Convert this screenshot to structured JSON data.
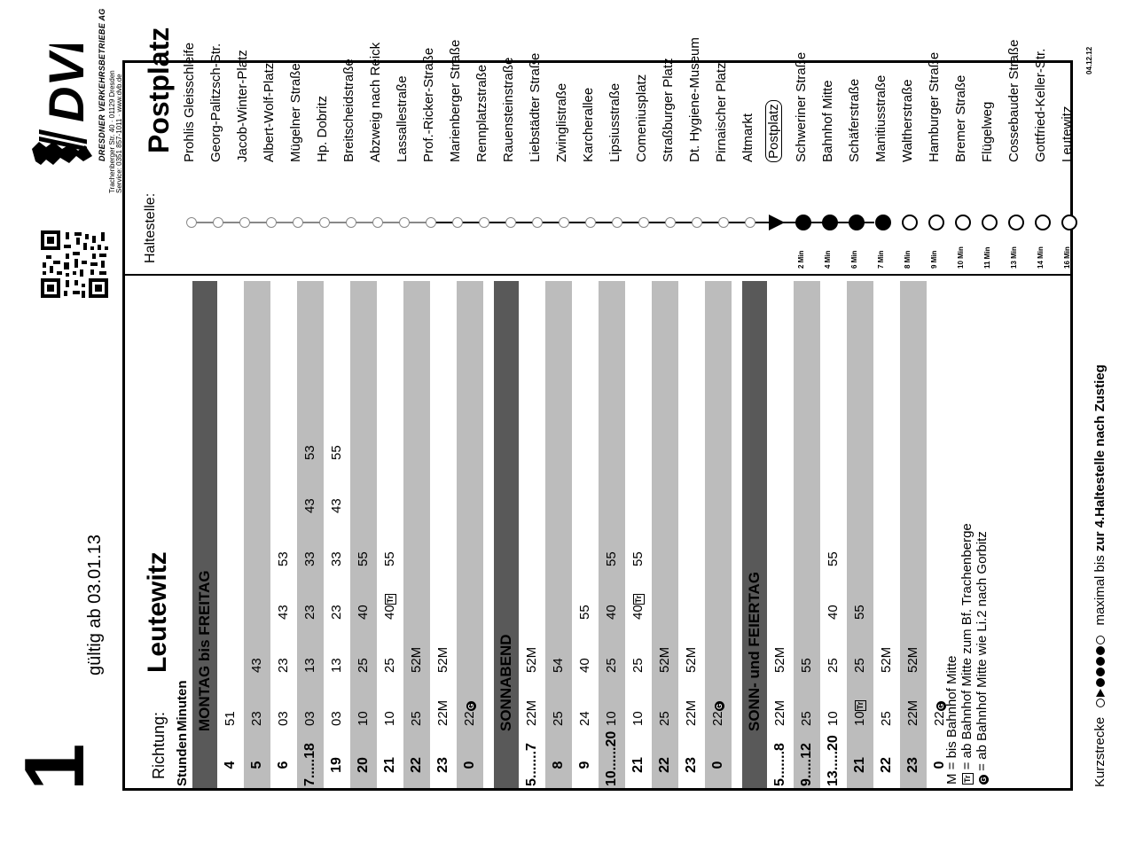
{
  "header": {
    "line_number": "1",
    "valid_from": "gültig ab 03.01.13",
    "logo_text": "DVB",
    "company": "DRESDNER VERKEHRSBETRIEBE AG",
    "address_line1": "Trachenberger Str. 40 · 01129 Dresden",
    "address_line2": "Service: 0351 857-1011 · www.dvb.de",
    "date_code": "04.12.12"
  },
  "direction": {
    "label": "Richtung:",
    "value": "Leutewitz"
  },
  "stop": {
    "label": "Haltestelle:",
    "value": "Postplatz"
  },
  "table_header": {
    "hours": "Stunden",
    "minutes": "Minuten"
  },
  "sections": [
    {
      "title": "MONTAG bis FREITAG",
      "rows": [
        {
          "hour": "4",
          "minutes": [
            "51"
          ],
          "shade": 1
        },
        {
          "hour": "5",
          "minutes": [
            "23",
            "43"
          ],
          "shade": 2
        },
        {
          "hour": "6",
          "minutes": [
            "03",
            "23",
            "43",
            "53"
          ],
          "shade": 1
        },
        {
          "hour": "7.....18",
          "minutes": [
            "03",
            "13",
            "23",
            "33",
            "43",
            "53"
          ],
          "shade": 2
        },
        {
          "hour": "19",
          "minutes": [
            "03",
            "13",
            "23",
            "33",
            "43",
            "55"
          ],
          "shade": 1
        },
        {
          "hour": "20",
          "minutes": [
            "10",
            "25",
            "40",
            "55"
          ],
          "shade": 2
        },
        {
          "hour": "21",
          "minutes": [
            "10",
            "25",
            "40Tr",
            "55"
          ],
          "shade": 1
        },
        {
          "hour": "22",
          "minutes": [
            "25",
            "52M"
          ],
          "shade": 2
        },
        {
          "hour": "23",
          "minutes": [
            "22M",
            "52M"
          ],
          "shade": 1
        },
        {
          "hour": "0",
          "minutes": [
            "22G"
          ],
          "shade": 2
        }
      ]
    },
    {
      "title": "SONNABEND",
      "rows": [
        {
          "hour": "5.......7",
          "minutes": [
            "22M",
            "52M"
          ],
          "shade": 1
        },
        {
          "hour": "8",
          "minutes": [
            "25",
            "54"
          ],
          "shade": 2
        },
        {
          "hour": "9",
          "minutes": [
            "24",
            "40",
            "55"
          ],
          "shade": 1
        },
        {
          "hour": "10......20",
          "minutes": [
            "10",
            "25",
            "40",
            "55"
          ],
          "shade": 2
        },
        {
          "hour": "21",
          "minutes": [
            "10",
            "25",
            "40Tr",
            "55"
          ],
          "shade": 1
        },
        {
          "hour": "22",
          "minutes": [
            "25",
            "52M"
          ],
          "shade": 2
        },
        {
          "hour": "23",
          "minutes": [
            "22M",
            "52M"
          ],
          "shade": 1
        },
        {
          "hour": "0",
          "minutes": [
            "22G"
          ],
          "shade": 2
        }
      ]
    },
    {
      "title": "SONN- und FEIERTAG",
      "rows": [
        {
          "hour": "5.......8",
          "minutes": [
            "22M",
            "52M"
          ],
          "shade": 1
        },
        {
          "hour": "9.....12",
          "minutes": [
            "25",
            "55"
          ],
          "shade": 2
        },
        {
          "hour": "13.....20",
          "minutes": [
            "10",
            "25",
            "40",
            "55"
          ],
          "shade": 1
        },
        {
          "hour": "21",
          "minutes": [
            "10Tr",
            "25",
            "55"
          ],
          "shade": 2
        },
        {
          "hour": "22",
          "minutes": [
            "25",
            "52M"
          ],
          "shade": 1
        },
        {
          "hour": "23",
          "minutes": [
            "22M",
            "52M"
          ],
          "shade": 2
        },
        {
          "hour": "0",
          "minutes": [
            "22G"
          ],
          "shade": 1
        }
      ]
    }
  ],
  "legend": {
    "m": "M = bis Bahnhof Mitte",
    "tr_symbol": "Tr",
    "tr": "= ab Bahnhof Mitte zum Bf. Trachenberge",
    "g_symbol": "G",
    "g": "= ab Bahnhof Mitte wie Li.2 nach Gorbitz"
  },
  "stops": [
    {
      "name": "Prohlis Gleisschleife",
      "type": "past",
      "time": ""
    },
    {
      "name": "Georg-Palitzsch-Str.",
      "type": "past",
      "time": ""
    },
    {
      "name": "Jacob-Winter-Platz",
      "type": "past",
      "time": ""
    },
    {
      "name": "Albert-Wolf-Platz",
      "type": "past",
      "time": ""
    },
    {
      "name": "Mügelner Straße",
      "type": "past",
      "time": ""
    },
    {
      "name": "Hp. Dobritz",
      "type": "past",
      "time": ""
    },
    {
      "name": "Breitscheidstraße",
      "type": "past",
      "time": ""
    },
    {
      "name": "Abzweig nach Reick",
      "type": "past",
      "time": ""
    },
    {
      "name": "Lassallestraße",
      "type": "past",
      "time": ""
    },
    {
      "name": "Prof.-Ricker-Straße",
      "type": "past",
      "time": ""
    },
    {
      "name": "Marienberger Straße",
      "type": "past",
      "time": ""
    },
    {
      "name": "Rennplatzstraße",
      "type": "past",
      "time": ""
    },
    {
      "name": "Rauensteinstraße",
      "type": "past",
      "time": ""
    },
    {
      "name": "Liebstädter Straße",
      "type": "past",
      "time": ""
    },
    {
      "name": "Zwinglistraße",
      "type": "past",
      "time": ""
    },
    {
      "name": "Karcherallee",
      "type": "past",
      "time": ""
    },
    {
      "name": "Lipsiusstraße",
      "type": "past",
      "time": ""
    },
    {
      "name": "Comeniusplatz",
      "type": "past",
      "time": ""
    },
    {
      "name": "Straßburger Platz",
      "type": "past",
      "time": ""
    },
    {
      "name": "Dt. Hygiene-Museum",
      "type": "past",
      "time": ""
    },
    {
      "name": "Pirnaischer Platz",
      "type": "past",
      "time": ""
    },
    {
      "name": "Altmarkt",
      "type": "past",
      "time": ""
    },
    {
      "name": "Postplatz",
      "type": "here",
      "time": ""
    },
    {
      "name": "Schweriner Straße",
      "type": "short",
      "time": "2 Min"
    },
    {
      "name": "Bahnhof Mitte",
      "type": "short",
      "time": "4 Min"
    },
    {
      "name": "Schäferstraße",
      "type": "short",
      "time": "6 Min"
    },
    {
      "name": "Manitiusstraße",
      "type": "short",
      "time": "7 Min"
    },
    {
      "name": "Waltherstraße",
      "type": "future",
      "time": "8 Min"
    },
    {
      "name": "Hamburger Straße",
      "type": "future",
      "time": "9 Min"
    },
    {
      "name": "Bremer Straße",
      "type": "future",
      "time": "10 Min"
    },
    {
      "name": "Flügelweg",
      "type": "future",
      "time": "11 Min"
    },
    {
      "name": "Cossebauder Straße",
      "type": "future",
      "time": "13 Min"
    },
    {
      "name": "Gottfried-Keller-Str.",
      "type": "future",
      "time": "14 Min"
    },
    {
      "name": "Leutewitz",
      "type": "future",
      "time": "16 Min"
    }
  ],
  "footer": {
    "kurzstrecke_label": "Kurzstrecke",
    "kurzstrecke_text_pre": "maximal bis",
    "kurzstrecke_text_bold": "zur 4.Haltestelle nach Zustieg"
  }
}
